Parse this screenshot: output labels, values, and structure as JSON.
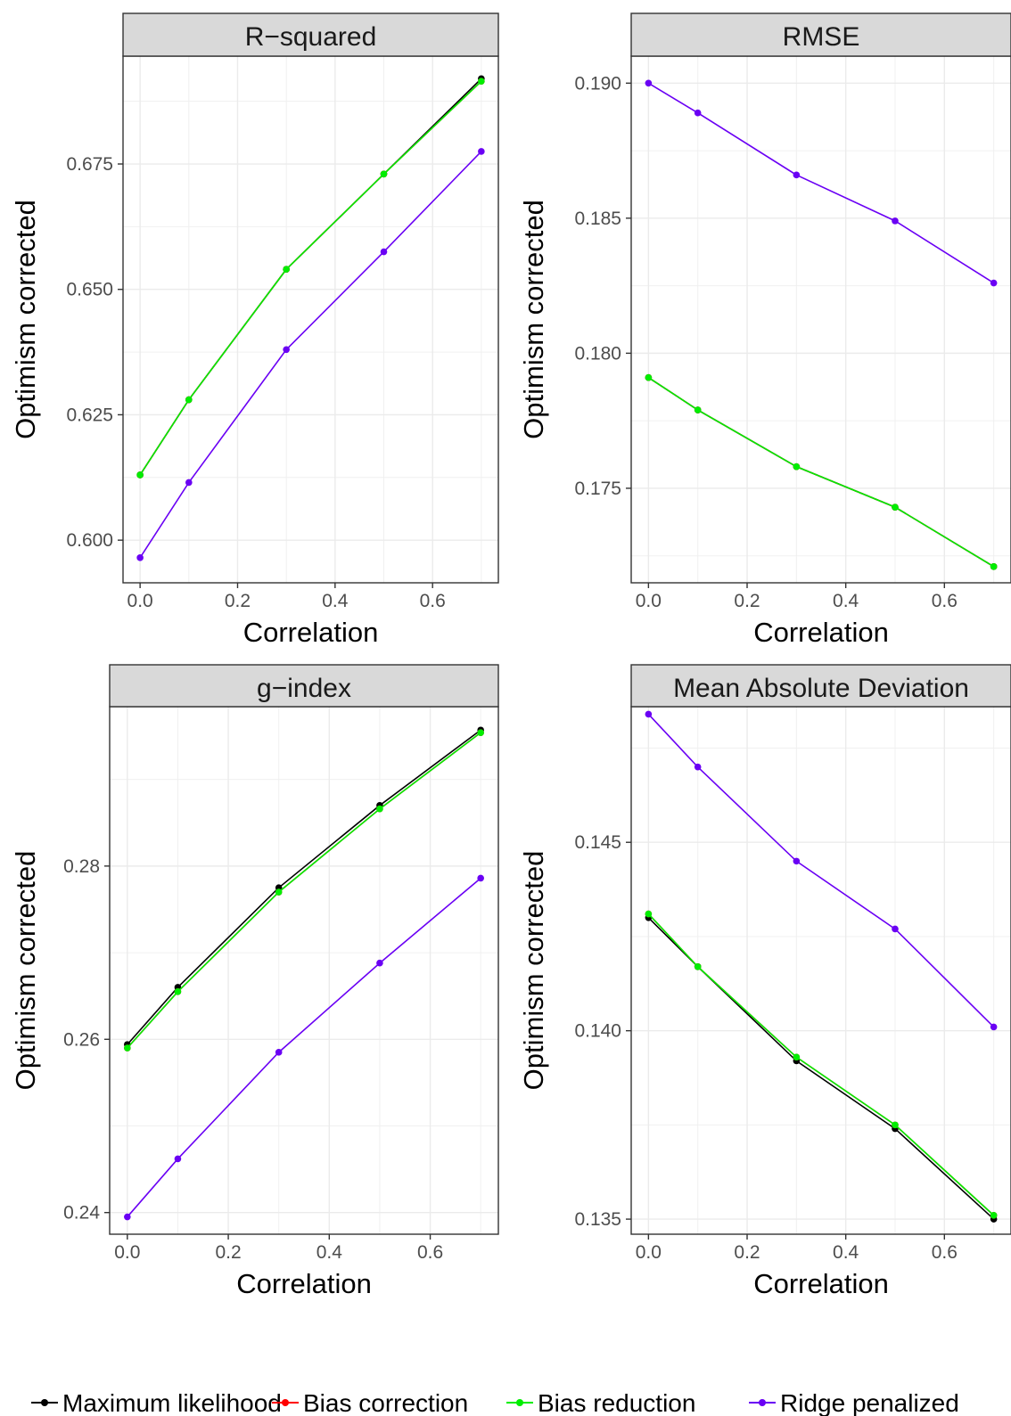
{
  "legend": {
    "items": [
      {
        "label": "Maximum likelihood",
        "color": "#000000"
      },
      {
        "label": "Bias correction",
        "color": "#ff0000"
      },
      {
        "label": "Bias reduction",
        "color": "#00ee00"
      },
      {
        "label": "Ridge penalized",
        "color": "#6a00f4"
      }
    ]
  },
  "chart_data": [
    {
      "type": "line",
      "title": "R−squared",
      "xlabel": "Correlation",
      "ylabel": "Optimism corrected",
      "x": [
        0.0,
        0.1,
        0.3,
        0.5,
        0.7
      ],
      "xlim": [
        -0.035,
        0.735
      ],
      "ylim": [
        0.5915,
        0.6965
      ],
      "xticks": [
        0.0,
        0.2,
        0.4,
        0.6
      ],
      "xtick_labels": [
        "0.0",
        "0.2",
        "0.4",
        "0.6"
      ],
      "yticks": [
        0.6,
        0.625,
        0.65,
        0.675
      ],
      "ytick_labels": [
        "0.600",
        "0.625",
        "0.650",
        "0.675"
      ],
      "grid": true,
      "series": [
        {
          "name": "Maximum likelihood",
          "values": [
            0.613,
            0.628,
            0.654,
            0.673,
            0.692
          ]
        },
        {
          "name": "Bias correction",
          "values": [
            0.613,
            0.628,
            0.654,
            0.673,
            0.6915
          ]
        },
        {
          "name": "Bias reduction",
          "values": [
            0.613,
            0.628,
            0.654,
            0.673,
            0.6915
          ]
        },
        {
          "name": "Ridge penalized",
          "values": [
            0.5965,
            0.6115,
            0.638,
            0.6575,
            0.6775
          ]
        }
      ]
    },
    {
      "type": "line",
      "title": "RMSE",
      "xlabel": "Correlation",
      "ylabel": "Optimism corrected",
      "x": [
        0.0,
        0.1,
        0.3,
        0.5,
        0.7
      ],
      "xlim": [
        -0.035,
        0.735
      ],
      "ylim": [
        0.1715,
        0.191
      ],
      "xticks": [
        0.0,
        0.2,
        0.4,
        0.6
      ],
      "xtick_labels": [
        "0.0",
        "0.2",
        "0.4",
        "0.6"
      ],
      "yticks": [
        0.175,
        0.18,
        0.185,
        0.19
      ],
      "ytick_labels": [
        "0.175",
        "0.180",
        "0.185",
        "0.190"
      ],
      "grid": true,
      "series": [
        {
          "name": "Maximum likelihood",
          "values": [
            0.1791,
            0.1779,
            0.1758,
            0.1743,
            0.1721
          ]
        },
        {
          "name": "Bias correction",
          "values": [
            0.1791,
            0.1779,
            0.1758,
            0.1743,
            0.1721
          ]
        },
        {
          "name": "Bias reduction",
          "values": [
            0.1791,
            0.1779,
            0.1758,
            0.1743,
            0.1721
          ]
        },
        {
          "name": "Ridge penalized",
          "values": [
            0.19,
            0.1889,
            0.1866,
            0.1849,
            0.1826
          ]
        }
      ]
    },
    {
      "type": "line",
      "title": "g−index",
      "xlabel": "Correlation",
      "ylabel": "Optimism corrected",
      "x": [
        0.0,
        0.1,
        0.3,
        0.5,
        0.7
      ],
      "xlim": [
        -0.035,
        0.735
      ],
      "ylim": [
        0.2375,
        0.2984
      ],
      "xticks": [
        0.0,
        0.2,
        0.4,
        0.6
      ],
      "xtick_labels": [
        "0.0",
        "0.2",
        "0.4",
        "0.6"
      ],
      "yticks": [
        0.24,
        0.26,
        0.28
      ],
      "ytick_labels": [
        "0.24",
        "0.26",
        "0.28"
      ],
      "grid": true,
      "series": [
        {
          "name": "Maximum likelihood",
          "values": [
            0.2594,
            0.266,
            0.2775,
            0.287,
            0.2957
          ]
        },
        {
          "name": "Bias correction",
          "values": [
            0.259,
            0.2655,
            0.277,
            0.2866,
            0.2954
          ]
        },
        {
          "name": "Bias reduction",
          "values": [
            0.259,
            0.2655,
            0.277,
            0.2866,
            0.2954
          ]
        },
        {
          "name": "Ridge penalized",
          "values": [
            0.2395,
            0.2462,
            0.2585,
            0.2688,
            0.2786
          ]
        }
      ]
    },
    {
      "type": "line",
      "title": "Mean Absolute Deviation",
      "xlabel": "Correlation",
      "ylabel": "Optimism corrected",
      "x": [
        0.0,
        0.1,
        0.3,
        0.5,
        0.7
      ],
      "xlim": [
        -0.035,
        0.735
      ],
      "ylim": [
        0.1346,
        0.1486
      ],
      "xticks": [
        0.0,
        0.2,
        0.4,
        0.6
      ],
      "xtick_labels": [
        "0.0",
        "0.2",
        "0.4",
        "0.6"
      ],
      "yticks": [
        0.135,
        0.14,
        0.145
      ],
      "ytick_labels": [
        "0.135",
        "0.140",
        "0.145"
      ],
      "grid": true,
      "series": [
        {
          "name": "Maximum likelihood",
          "values": [
            0.143,
            0.1417,
            0.1392,
            0.1374,
            0.135
          ]
        },
        {
          "name": "Bias correction",
          "values": [
            0.1431,
            0.1417,
            0.1393,
            0.1375,
            0.1351
          ]
        },
        {
          "name": "Bias reduction",
          "values": [
            0.1431,
            0.1417,
            0.1393,
            0.1375,
            0.1351
          ]
        },
        {
          "name": "Ridge penalized",
          "values": [
            0.1484,
            0.147,
            0.1445,
            0.1427,
            0.1401
          ]
        }
      ]
    }
  ]
}
